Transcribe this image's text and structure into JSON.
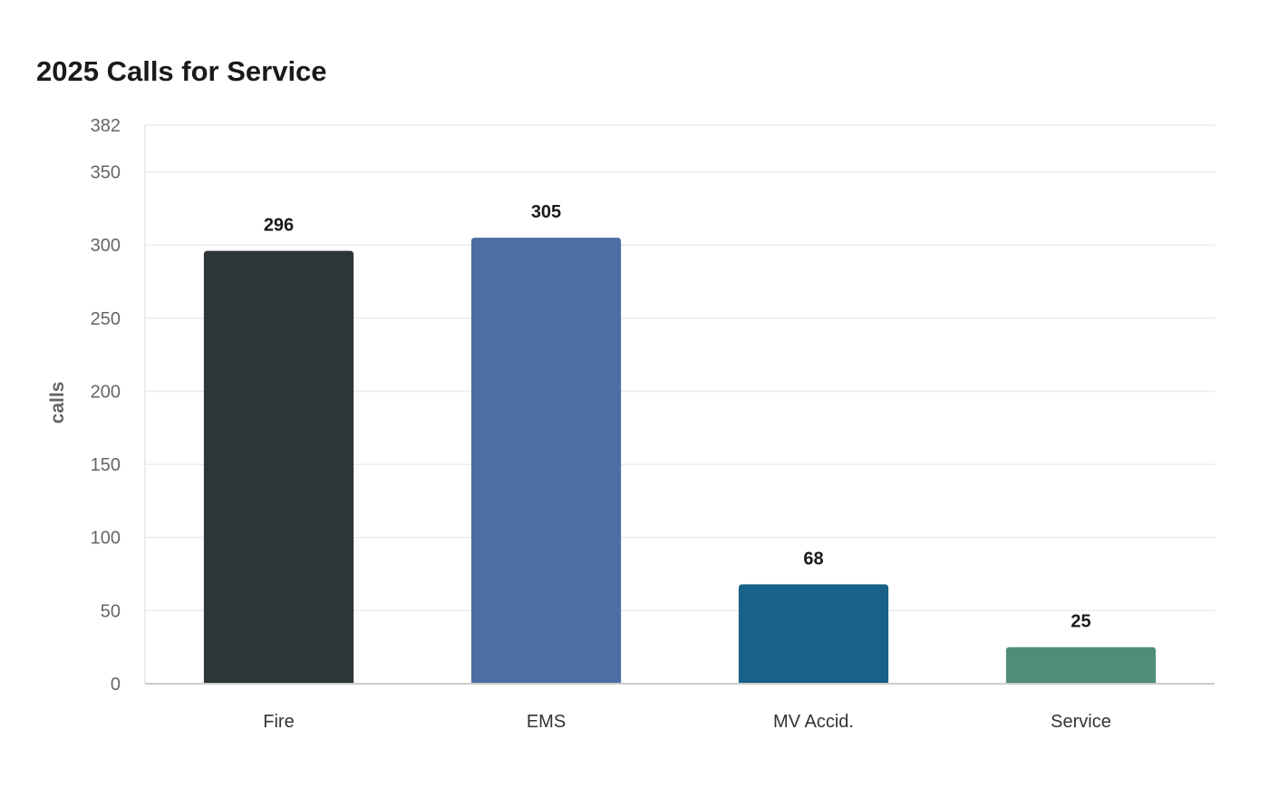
{
  "chart_data": {
    "type": "bar",
    "title": "2025 Calls for Service",
    "xlabel": "",
    "ylabel": "calls",
    "categories": [
      "Fire",
      "EMS",
      "MV Accid.",
      "Service"
    ],
    "values": [
      296,
      305,
      68,
      25
    ],
    "colors": [
      "#2e3538",
      "#4b6fa3",
      "#186188",
      "#4f8d7b"
    ],
    "ylim": [
      0,
      382
    ],
    "yticks": [
      0,
      50,
      100,
      150,
      200,
      250,
      300,
      350,
      382
    ],
    "grid": true,
    "legend": "none",
    "gridColor": "#ececec",
    "axisColor": "#cccccc"
  }
}
